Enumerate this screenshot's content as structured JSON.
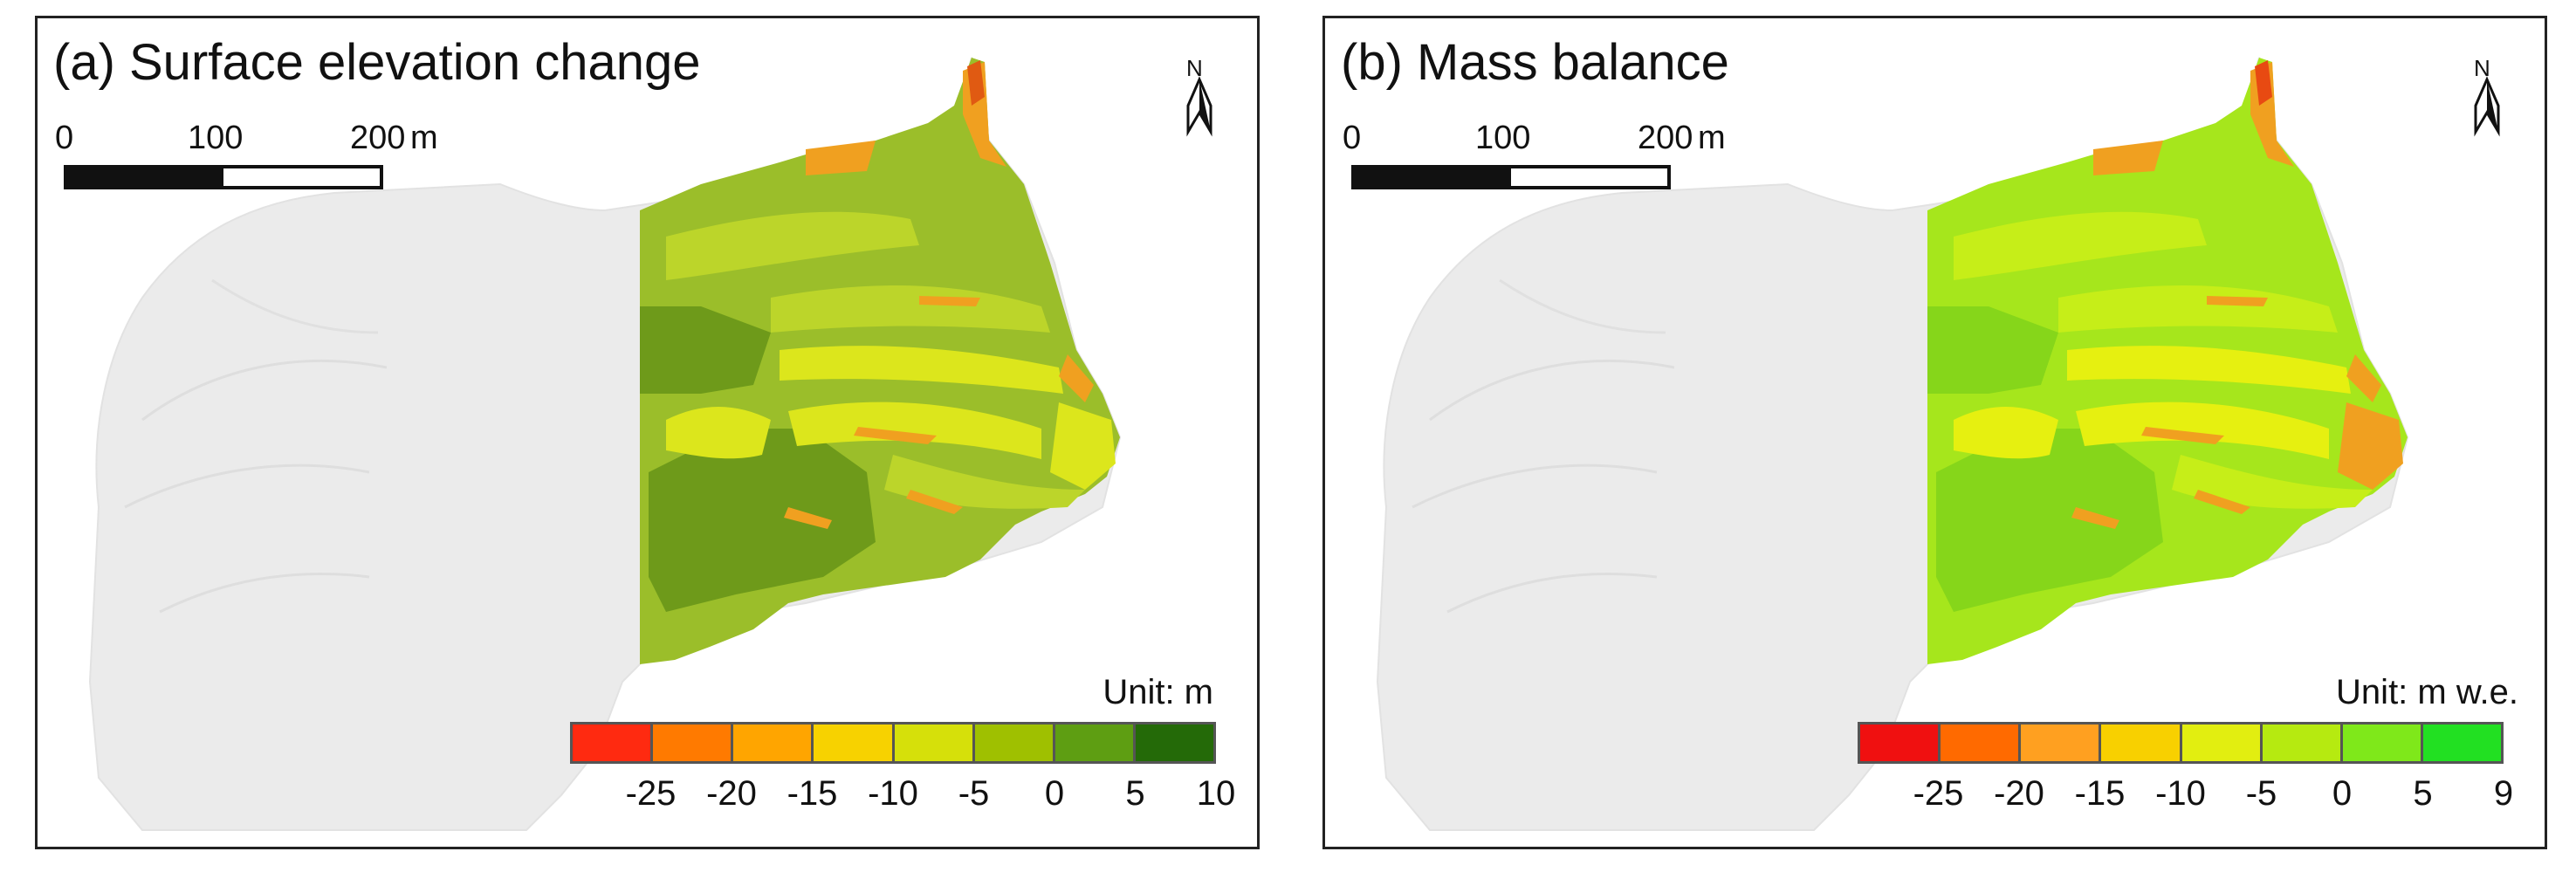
{
  "panels": [
    {
      "title": "(a) Surface elevation change",
      "scalebar": {
        "labels": [
          "0",
          "100",
          "200",
          "m"
        ]
      },
      "north": "N",
      "unit": "Unit: m",
      "legend": {
        "colors": [
          "#ff2a10",
          "#ff7a00",
          "#ffa500",
          "#f7d200",
          "#d6e00a",
          "#9fc000",
          "#5e9e12",
          "#246a08"
        ],
        "ticks": [
          "-25",
          "-20",
          "-15",
          "-10",
          "-5",
          "0",
          "5",
          "10"
        ]
      },
      "palette": {
        "base": "#9bbe2a",
        "dark": "#6e9a1a",
        "mid": "#bcd52a",
        "yellow": "#dce61c",
        "orange": "#f0a020",
        "red": "#e05a12"
      }
    },
    {
      "title": "(b) Mass balance",
      "scalebar": {
        "labels": [
          "0",
          "100",
          "200",
          "m"
        ]
      },
      "north": "N",
      "unit": "Unit: m w.e.",
      "legend": {
        "colors": [
          "#f01010",
          "#ff6a00",
          "#ffa020",
          "#f8d000",
          "#e2ee10",
          "#b6ea10",
          "#7fe81a",
          "#22e022"
        ],
        "ticks": [
          "-25",
          "-20",
          "-15",
          "-10",
          "-5",
          "0",
          "5",
          "9"
        ]
      },
      "palette": {
        "base": "#a6e61c",
        "dark": "#86d61a",
        "mid": "#c6ee18",
        "yellow": "#e6f010",
        "orange": "#f0a020",
        "red": "#e84a12"
      }
    }
  ]
}
